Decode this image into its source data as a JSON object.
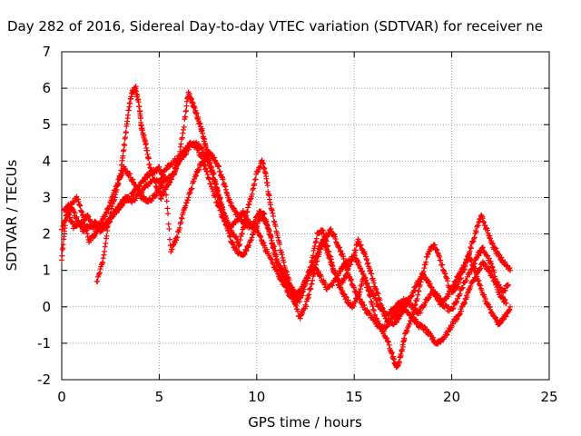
{
  "chart_data": {
    "type": "scatter",
    "title": "Day 282 of 2016, Sidereal Day-to-day VTEC variation (SDTVAR) for receiver ne",
    "xlabel": "GPS time / hours",
    "ylabel": "SDTVAR / TECUs",
    "xlim": [
      0,
      25
    ],
    "ylim": [
      -2,
      7
    ],
    "xticks": [
      "0",
      "5",
      "10",
      "15",
      "20",
      "25"
    ],
    "yticks": [
      "-2",
      "-1",
      "0",
      "1",
      "2",
      "3",
      "4",
      "5",
      "6",
      "7"
    ],
    "grid": true,
    "marker": "+",
    "series_color": "#ff0000",
    "series": [
      {
        "x": [
          0.0,
          0.3,
          0.6,
          1.0,
          1.3,
          1.6,
          2.0,
          2.3,
          2.6,
          3.0,
          3.3,
          3.6,
          4.0,
          4.3,
          4.7,
          5.0,
          5.3,
          5.6,
          6.0,
          6.3,
          6.6,
          7.0,
          7.3,
          7.6,
          8.0,
          8.3,
          8.6,
          9.0,
          9.3,
          9.6,
          10.0,
          10.3,
          10.6,
          11.0,
          11.3,
          11.6,
          12.0,
          12.3,
          12.6,
          13.0,
          13.3,
          13.6,
          14.0,
          14.3,
          14.6,
          15.0,
          15.3,
          15.6,
          16.0,
          16.3,
          16.6,
          17.0,
          17.3,
          17.6,
          18.0,
          18.3,
          18.6,
          19.0,
          19.3,
          19.6,
          20.0,
          20.3,
          20.6,
          21.0,
          21.3,
          21.6,
          22.0,
          22.3,
          22.6,
          22.9
        ],
        "y": [
          2.1,
          2.6,
          2.2,
          2.3,
          2.5,
          2.2,
          2.1,
          2.3,
          2.5,
          2.8,
          3.0,
          2.9,
          3.1,
          3.3,
          3.5,
          3.4,
          3.8,
          3.9,
          4.1,
          4.3,
          4.5,
          4.3,
          3.9,
          3.4,
          2.8,
          2.4,
          2.2,
          2.4,
          2.6,
          2.3,
          2.1,
          1.8,
          1.4,
          1.0,
          0.7,
          0.4,
          0.1,
          0.4,
          0.9,
          1.1,
          0.8,
          0.5,
          0.7,
          1.0,
          1.2,
          1.4,
          1.1,
          0.7,
          0.3,
          0.0,
          -0.2,
          -0.1,
          0.1,
          0.2,
          0.0,
          -0.2,
          0.1,
          0.4,
          0.3,
          0.0,
          -0.1,
          0.2,
          0.6,
          1.0,
          1.4,
          1.6,
          1.2,
          0.7,
          0.4,
          0.6
        ]
      },
      {
        "x": [
          0.1,
          0.4,
          0.8,
          1.1,
          1.4,
          1.7,
          2.0,
          2.3,
          2.6,
          2.9,
          3.2,
          3.5,
          3.8,
          4.1,
          4.4,
          4.7,
          5.0,
          5.3,
          5.7,
          6.0,
          6.3,
          6.6,
          6.9,
          7.2,
          7.5,
          7.8,
          8.1,
          8.4,
          8.7,
          9.0,
          9.3,
          9.6,
          9.9,
          10.2,
          10.5,
          10.8,
          11.1,
          11.4,
          11.7,
          12.0,
          12.3,
          12.6,
          12.9,
          13.2,
          13.5,
          13.8,
          14.1,
          14.4,
          14.7,
          15.0,
          15.3,
          15.6,
          15.9,
          16.2,
          16.5,
          16.8,
          17.1,
          17.4,
          17.7,
          18.0,
          18.3,
          18.6,
          18.9,
          19.2,
          19.5,
          19.8,
          20.1,
          20.4,
          20.7,
          21.0,
          21.3,
          21.6,
          21.9,
          22.2,
          22.5,
          22.8
        ],
        "y": [
          2.6,
          2.8,
          3.0,
          2.5,
          1.8,
          2.0,
          2.3,
          2.6,
          3.0,
          3.5,
          3.8,
          3.6,
          3.3,
          3.0,
          2.9,
          3.0,
          3.2,
          3.5,
          3.6,
          4.0,
          4.2,
          4.4,
          4.5,
          4.3,
          4.0,
          3.6,
          3.0,
          2.3,
          1.8,
          1.5,
          1.4,
          1.7,
          2.1,
          2.5,
          2.3,
          1.8,
          1.2,
          0.9,
          0.6,
          0.3,
          0.5,
          0.8,
          1.2,
          1.6,
          1.9,
          2.1,
          1.8,
          1.4,
          0.9,
          0.5,
          0.2,
          -0.1,
          -0.3,
          -0.5,
          -0.6,
          -0.4,
          -0.2,
          0.0,
          -0.1,
          -0.3,
          -0.5,
          -0.6,
          -0.8,
          -1.0,
          -0.9,
          -0.7,
          -0.4,
          -0.2,
          0.2,
          0.6,
          0.9,
          1.2,
          1.0,
          0.7,
          0.3,
          0.1
        ]
      },
      {
        "x": [
          1.8,
          2.1,
          2.4,
          2.7,
          3.0,
          3.2,
          3.4,
          3.6,
          3.8,
          4.0,
          4.1,
          4.3,
          4.5,
          4.8,
          5.1,
          5.4,
          5.7,
          6.0,
          6.3,
          6.5,
          6.7,
          6.9,
          7.1,
          7.3,
          7.5,
          7.7,
          7.9,
          8.1,
          8.3,
          8.5,
          8.8,
          9.1,
          9.4,
          9.7,
          10.0,
          10.3,
          10.5,
          10.7,
          11.0,
          11.3,
          11.6,
          11.9,
          12.2,
          12.5,
          12.8,
          13.1,
          13.4,
          13.7,
          14.0,
          14.3,
          14.6,
          14.9,
          15.2,
          15.5,
          15.8,
          16.1,
          16.4,
          16.7,
          17.0,
          17.2,
          17.4,
          17.6,
          17.9,
          18.2,
          18.5,
          18.8,
          19.1,
          19.4,
          19.7,
          20.0,
          20.3,
          20.6,
          20.9,
          21.2,
          21.5,
          21.8,
          22.1,
          22.4,
          22.7,
          23.0
        ],
        "y": [
          0.7,
          1.2,
          2.3,
          3.0,
          3.6,
          4.4,
          5.3,
          5.9,
          6.0,
          5.4,
          4.9,
          4.5,
          3.9,
          3.4,
          3.0,
          3.3,
          3.6,
          4.0,
          5.1,
          5.9,
          5.6,
          5.3,
          5.0,
          4.6,
          4.2,
          3.7,
          3.3,
          2.9,
          2.6,
          2.3,
          2.0,
          1.7,
          2.4,
          3.0,
          3.7,
          4.0,
          3.5,
          2.8,
          2.1,
          1.4,
          0.8,
          0.3,
          0.2,
          0.6,
          1.2,
          2.0,
          2.1,
          1.5,
          0.9,
          0.5,
          0.2,
          0.0,
          0.3,
          0.8,
          0.3,
          -0.3,
          -0.6,
          -0.9,
          -1.4,
          -1.7,
          -1.3,
          -0.8,
          -0.4,
          0.2,
          0.9,
          1.5,
          1.7,
          1.3,
          0.8,
          0.4,
          0.6,
          1.0,
          1.5,
          2.0,
          2.5,
          2.1,
          1.7,
          1.4,
          1.2,
          1.0
        ]
      },
      {
        "x": [
          0.0,
          0.2,
          0.5,
          0.8,
          1.1,
          1.4,
          1.7,
          2.0,
          2.3,
          2.6,
          2.9,
          3.2,
          3.5,
          3.8,
          4.1,
          4.4,
          4.7,
          5.0,
          5.3,
          5.6,
          5.9,
          6.2,
          6.5,
          6.8,
          7.1,
          7.4,
          7.7,
          8.0,
          8.3,
          8.6,
          8.9,
          9.2,
          9.5,
          9.8,
          10.1,
          10.4,
          10.7,
          11.0,
          11.3,
          11.6,
          11.9,
          12.2,
          12.5,
          12.8,
          13.1,
          13.4,
          13.7,
          14.0,
          14.3,
          14.6,
          14.9,
          15.2,
          15.5,
          15.8,
          16.1,
          16.4,
          16.7,
          17.0,
          17.3,
          17.6,
          17.9,
          18.2,
          18.5,
          18.8,
          19.1,
          19.4,
          19.7,
          20.0,
          20.3,
          20.6,
          20.9,
          21.2,
          21.5,
          21.8,
          22.1,
          22.4,
          22.7,
          23.0
        ],
        "y": [
          1.3,
          2.4,
          2.7,
          2.4,
          2.1,
          2.2,
          2.3,
          2.2,
          2.2,
          2.5,
          2.7,
          2.9,
          3.0,
          3.2,
          3.4,
          3.6,
          3.7,
          3.8,
          3.5,
          1.5,
          1.9,
          2.5,
          3.0,
          3.5,
          3.9,
          4.1,
          4.2,
          3.9,
          3.4,
          2.9,
          2.6,
          2.4,
          2.2,
          2.2,
          2.6,
          2.5,
          1.9,
          1.3,
          0.9,
          0.6,
          0.2,
          -0.3,
          0.0,
          0.6,
          1.3,
          1.8,
          1.4,
          0.9,
          0.6,
          0.9,
          1.3,
          1.8,
          1.5,
          1.0,
          0.5,
          0.0,
          -0.4,
          -0.5,
          -0.3,
          0.0,
          0.3,
          0.6,
          0.9,
          0.7,
          0.4,
          0.1,
          0.2,
          0.5,
          0.8,
          1.1,
          1.4,
          1.0,
          0.5,
          0.1,
          -0.2,
          -0.5,
          -0.3,
          0.0
        ]
      }
    ]
  }
}
